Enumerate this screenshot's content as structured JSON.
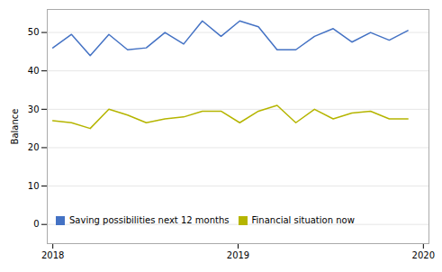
{
  "chart_data": {
    "type": "line",
    "ylabel": "Balance",
    "x": [
      2018,
      2018.100877,
      2018.201754,
      2018.302632,
      2018.403509,
      2018.504386,
      2018.605263,
      2018.70614,
      2018.807018,
      2018.907895,
      2019.008772,
      2019.109649,
      2019.210526,
      2019.311404,
      2019.412281,
      2019.513158,
      2019.614035,
      2019.714912,
      2019.815789,
      2019.916667
    ],
    "series": [
      {
        "name": "Saving possibilities next 12 months",
        "color": "#4472c4",
        "values": [
          46,
          49.5,
          44,
          49.5,
          45.5,
          46,
          50,
          47,
          53,
          49,
          53,
          51.5,
          45.5,
          45.5,
          49,
          51,
          47.5,
          50,
          48,
          50.5
        ]
      },
      {
        "name": "Financial situation now",
        "color": "#b5b500",
        "values": [
          27,
          26.5,
          25,
          30,
          28.5,
          26.5,
          27.5,
          28,
          29.5,
          29.5,
          26.5,
          29.5,
          31,
          26.5,
          30,
          27.5,
          29,
          29.5,
          27.5,
          27.5
        ]
      }
    ],
    "xlim": [
      2017.97,
      2020.03
    ],
    "xticks": [
      2018,
      2019,
      2020
    ],
    "ylim": [
      -5,
      56
    ],
    "yticks": [
      0,
      10,
      20,
      30,
      40,
      50
    ],
    "grid": true,
    "legend": "lower left"
  }
}
